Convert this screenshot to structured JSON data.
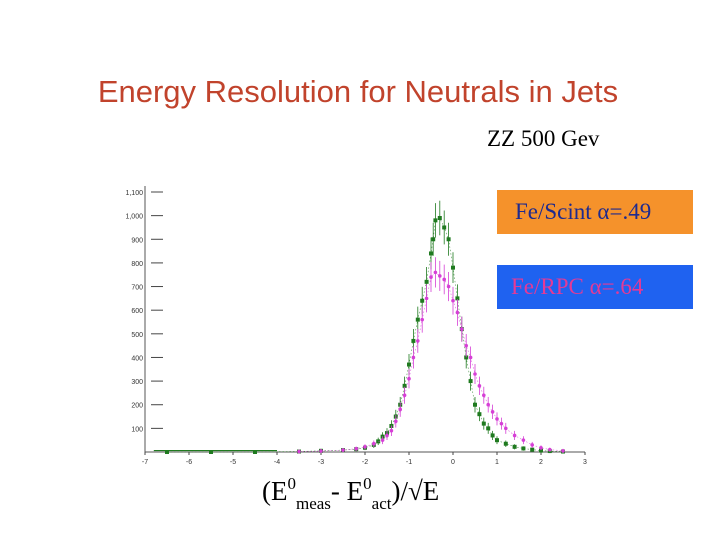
{
  "slide": {
    "title": "Energy Resolution for Neutrals in Jets",
    "subtitle": "ZZ 500 Gev"
  },
  "legend": {
    "scint_label": "Fe/Scint α=.49",
    "rpc_label": "Fe/RPC  α=.64"
  },
  "xlabel_parts": {
    "open": "(E",
    "sup1": "0",
    "sub1": "meas",
    "minus": "- E",
    "sup2": "0",
    "sub2": "act",
    "close": ")/√E"
  },
  "colors": {
    "title": "#c1432c",
    "scint_box": "#f5922b",
    "scint_text": "#1d2a8f",
    "rpc_box": "#1f62f0",
    "rpc_text": "#e43a96",
    "scint_series": "#1f7a1f",
    "rpc_series": "#d63fd6"
  },
  "chart_data": {
    "type": "scatter",
    "title": "",
    "xlabel": "(E0meas- E0act)/√E",
    "ylabel": "",
    "xlim": [
      -7,
      3
    ],
    "ylim": [
      0,
      1100
    ],
    "x_ticks": [
      "-7",
      "-6",
      "-5",
      "-4",
      "-3",
      "-2",
      "-1",
      "0",
      "1",
      "2",
      "3"
    ],
    "y_ticks": [
      "100",
      "200",
      "300",
      "400",
      "500",
      "600",
      "700",
      "800",
      "900",
      "1,000",
      "1,100"
    ],
    "grid": false,
    "series": [
      {
        "name": "Fe/Scint α=.49",
        "color": "#1f7a1f",
        "points": [
          [
            -6.5,
            0
          ],
          [
            -5.5,
            0
          ],
          [
            -4.5,
            0
          ],
          [
            -3.5,
            2
          ],
          [
            -3.0,
            5
          ],
          [
            -2.5,
            8
          ],
          [
            -2.2,
            12
          ],
          [
            -2.0,
            18
          ],
          [
            -1.8,
            30
          ],
          [
            -1.7,
            45
          ],
          [
            -1.6,
            65
          ],
          [
            -1.5,
            80
          ],
          [
            -1.4,
            110
          ],
          [
            -1.3,
            150
          ],
          [
            -1.2,
            200
          ],
          [
            -1.1,
            280
          ],
          [
            -1.0,
            370
          ],
          [
            -0.9,
            470
          ],
          [
            -0.8,
            560
          ],
          [
            -0.7,
            640
          ],
          [
            -0.6,
            720
          ],
          [
            -0.5,
            840
          ],
          [
            -0.45,
            900
          ],
          [
            -0.4,
            980
          ],
          [
            -0.3,
            990
          ],
          [
            -0.2,
            950
          ],
          [
            -0.1,
            900
          ],
          [
            0.0,
            780
          ],
          [
            0.1,
            650
          ],
          [
            0.2,
            520
          ],
          [
            0.3,
            400
          ],
          [
            0.4,
            300
          ],
          [
            0.5,
            200
          ],
          [
            0.6,
            160
          ],
          [
            0.7,
            120
          ],
          [
            0.8,
            100
          ],
          [
            0.9,
            70
          ],
          [
            1.0,
            50
          ],
          [
            1.2,
            35
          ],
          [
            1.4,
            22
          ],
          [
            1.6,
            15
          ],
          [
            1.8,
            10
          ],
          [
            2.0,
            6
          ],
          [
            2.2,
            4
          ],
          [
            2.5,
            2
          ]
        ]
      },
      {
        "name": "Fe/RPC  α=.64",
        "color": "#d63fd6",
        "points": [
          [
            -3.5,
            2
          ],
          [
            -3.0,
            4
          ],
          [
            -2.5,
            8
          ],
          [
            -2.2,
            14
          ],
          [
            -2.0,
            22
          ],
          [
            -1.8,
            35
          ],
          [
            -1.6,
            50
          ],
          [
            -1.5,
            70
          ],
          [
            -1.4,
            90
          ],
          [
            -1.3,
            130
          ],
          [
            -1.2,
            180
          ],
          [
            -1.1,
            240
          ],
          [
            -1.0,
            310
          ],
          [
            -0.9,
            400
          ],
          [
            -0.8,
            470
          ],
          [
            -0.7,
            560
          ],
          [
            -0.6,
            650
          ],
          [
            -0.5,
            740
          ],
          [
            -0.4,
            760
          ],
          [
            -0.3,
            745
          ],
          [
            -0.2,
            730
          ],
          [
            -0.1,
            700
          ],
          [
            0.0,
            640
          ],
          [
            0.1,
            590
          ],
          [
            0.2,
            520
          ],
          [
            0.3,
            450
          ],
          [
            0.4,
            400
          ],
          [
            0.5,
            330
          ],
          [
            0.6,
            280
          ],
          [
            0.7,
            240
          ],
          [
            0.8,
            200
          ],
          [
            0.9,
            170
          ],
          [
            1.0,
            140
          ],
          [
            1.1,
            120
          ],
          [
            1.2,
            100
          ],
          [
            1.4,
            70
          ],
          [
            1.6,
            50
          ],
          [
            1.8,
            30
          ],
          [
            2.0,
            18
          ],
          [
            2.2,
            10
          ],
          [
            2.5,
            5
          ]
        ]
      }
    ]
  }
}
